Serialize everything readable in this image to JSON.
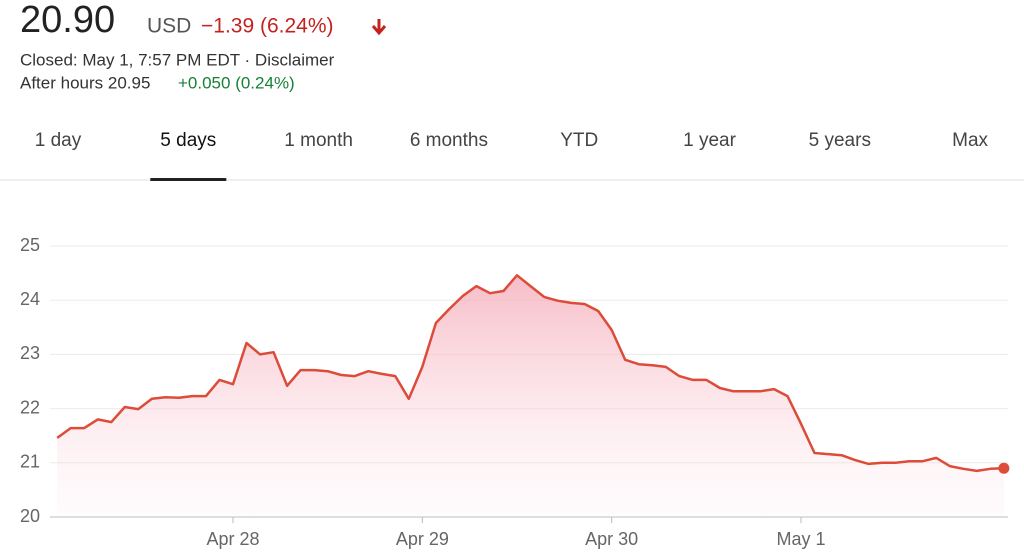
{
  "quote": {
    "price": "20.90",
    "currency": "USD",
    "change": "−1.39 (6.24%)",
    "status": "Closed: May 1, 7:57 PM EDT · Disclaimer",
    "after_hours_label": "After hours 20.95",
    "after_hours_change": "+0.050 (0.24%)"
  },
  "tabs": {
    "items": [
      "1 day",
      "5 days",
      "1 month",
      "6 months",
      "YTD",
      "1 year",
      "5 years",
      "Max"
    ],
    "selected": 1
  },
  "chart_data": {
    "type": "area-line",
    "color": "#dd4b39",
    "categories": [
      null,
      null,
      null,
      null,
      null,
      null,
      null,
      null,
      null,
      null,
      null,
      null,
      null,
      "Apr 28",
      null,
      null,
      null,
      null,
      null,
      null,
      null,
      null,
      null,
      null,
      null,
      null,
      null,
      "Apr 29",
      null,
      null,
      null,
      null,
      null,
      null,
      null,
      null,
      null,
      null,
      null,
      null,
      null,
      "Apr 30",
      null,
      null,
      null,
      null,
      null,
      null,
      null,
      null,
      null,
      null,
      null,
      null,
      null,
      "May 1",
      null,
      null,
      null,
      null,
      null,
      null,
      null,
      null,
      null,
      null,
      null,
      null,
      null,
      null,
      null
    ],
    "values": [
      21.46,
      21.64,
      21.64,
      21.8,
      21.75,
      22.03,
      21.99,
      22.18,
      22.21,
      22.2,
      22.23,
      22.23,
      22.53,
      22.45,
      23.21,
      23.0,
      23.04,
      22.42,
      22.71,
      22.71,
      22.69,
      22.62,
      22.6,
      22.69,
      22.64,
      22.6,
      22.18,
      22.77,
      23.58,
      23.84,
      24.08,
      24.26,
      24.13,
      24.17,
      24.46,
      24.26,
      24.06,
      23.99,
      23.95,
      23.93,
      23.8,
      23.45,
      22.9,
      22.82,
      22.8,
      22.77,
      22.6,
      22.53,
      22.53,
      22.38,
      22.32,
      22.32,
      22.32,
      22.36,
      22.23,
      21.72,
      21.18,
      21.16,
      21.14,
      21.05,
      20.98,
      21.0,
      21.0,
      21.03,
      21.03,
      21.09,
      20.94,
      20.89,
      20.85,
      20.89,
      20.9
    ],
    "ylim": [
      20,
      25
    ],
    "yticks": [
      20,
      21,
      22,
      23,
      24,
      25
    ],
    "grid": true
  }
}
